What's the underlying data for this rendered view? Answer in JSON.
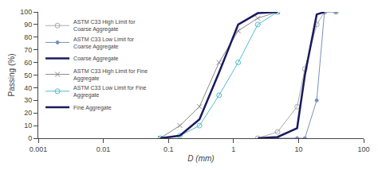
{
  "chart_data": {
    "type": "line",
    "xlabel": "D (mm)",
    "ylabel": "Passing (%)",
    "log": "x",
    "xlim": [
      0.001,
      100
    ],
    "xticks": [
      0.001,
      0.01,
      0.1,
      1,
      10,
      100
    ],
    "ylim": [
      0,
      100
    ],
    "yticks": [
      0,
      10,
      20,
      30,
      40,
      50,
      60,
      70,
      80,
      90,
      100
    ],
    "grid": false,
    "legend": "upper left",
    "series": [
      {
        "name": "ASTM C33 High Limit for\nCoarse Aggregate",
        "color": "#aaaaaa",
        "marker": "circle-open",
        "line_style": "solid",
        "x": [
          2.36,
          4.75,
          9.5,
          12.5,
          19.0,
          25.0,
          37.5
        ],
        "values": [
          0,
          5,
          25,
          55,
          90,
          100,
          100
        ]
      },
      {
        "name": "ASTM C33 Low Limit for\nCoarse Aggregate",
        "color": "#7a8fbf",
        "marker": "dot",
        "line_style": "solid",
        "x": [
          4.75,
          9.5,
          12.5,
          19.0,
          25.0,
          37.5
        ],
        "values": [
          0,
          0,
          0,
          30,
          100,
          100
        ]
      },
      {
        "name": "Coarse Aggregate",
        "color": "#1a1a5e",
        "line_style": "solid",
        "x": [
          2.36,
          4.75,
          9.5,
          12.5,
          19.0,
          25.0
        ],
        "values": [
          0,
          1,
          8,
          50,
          98,
          100
        ]
      },
      {
        "name": "ASTM C33 High Limit for Fine\nAggregate",
        "color": "#888888",
        "marker": "x",
        "line_style": "solid",
        "x": [
          0.075,
          0.15,
          0.3,
          0.6,
          1.18,
          2.36,
          4.75
        ],
        "values": [
          0,
          10,
          25,
          60,
          85,
          95,
          100
        ]
      },
      {
        "name": "ASTM C33 Low Limit for Fine\nAggregate",
        "color": "#55bbcc",
        "marker": "circle-open",
        "line_style": "solid",
        "x": [
          0.075,
          0.15,
          0.3,
          0.6,
          1.18,
          2.36,
          4.75
        ],
        "values": [
          0,
          2,
          10,
          34,
          60,
          90,
          100
        ]
      },
      {
        "name": "Fine Aggregate",
        "color": "#1a1a5e",
        "line_style": "solid",
        "x": [
          0.075,
          0.15,
          0.3,
          0.6,
          1.18,
          2.36,
          4.75
        ],
        "values": [
          0,
          2,
          15,
          52,
          90,
          99,
          100
        ]
      }
    ]
  }
}
